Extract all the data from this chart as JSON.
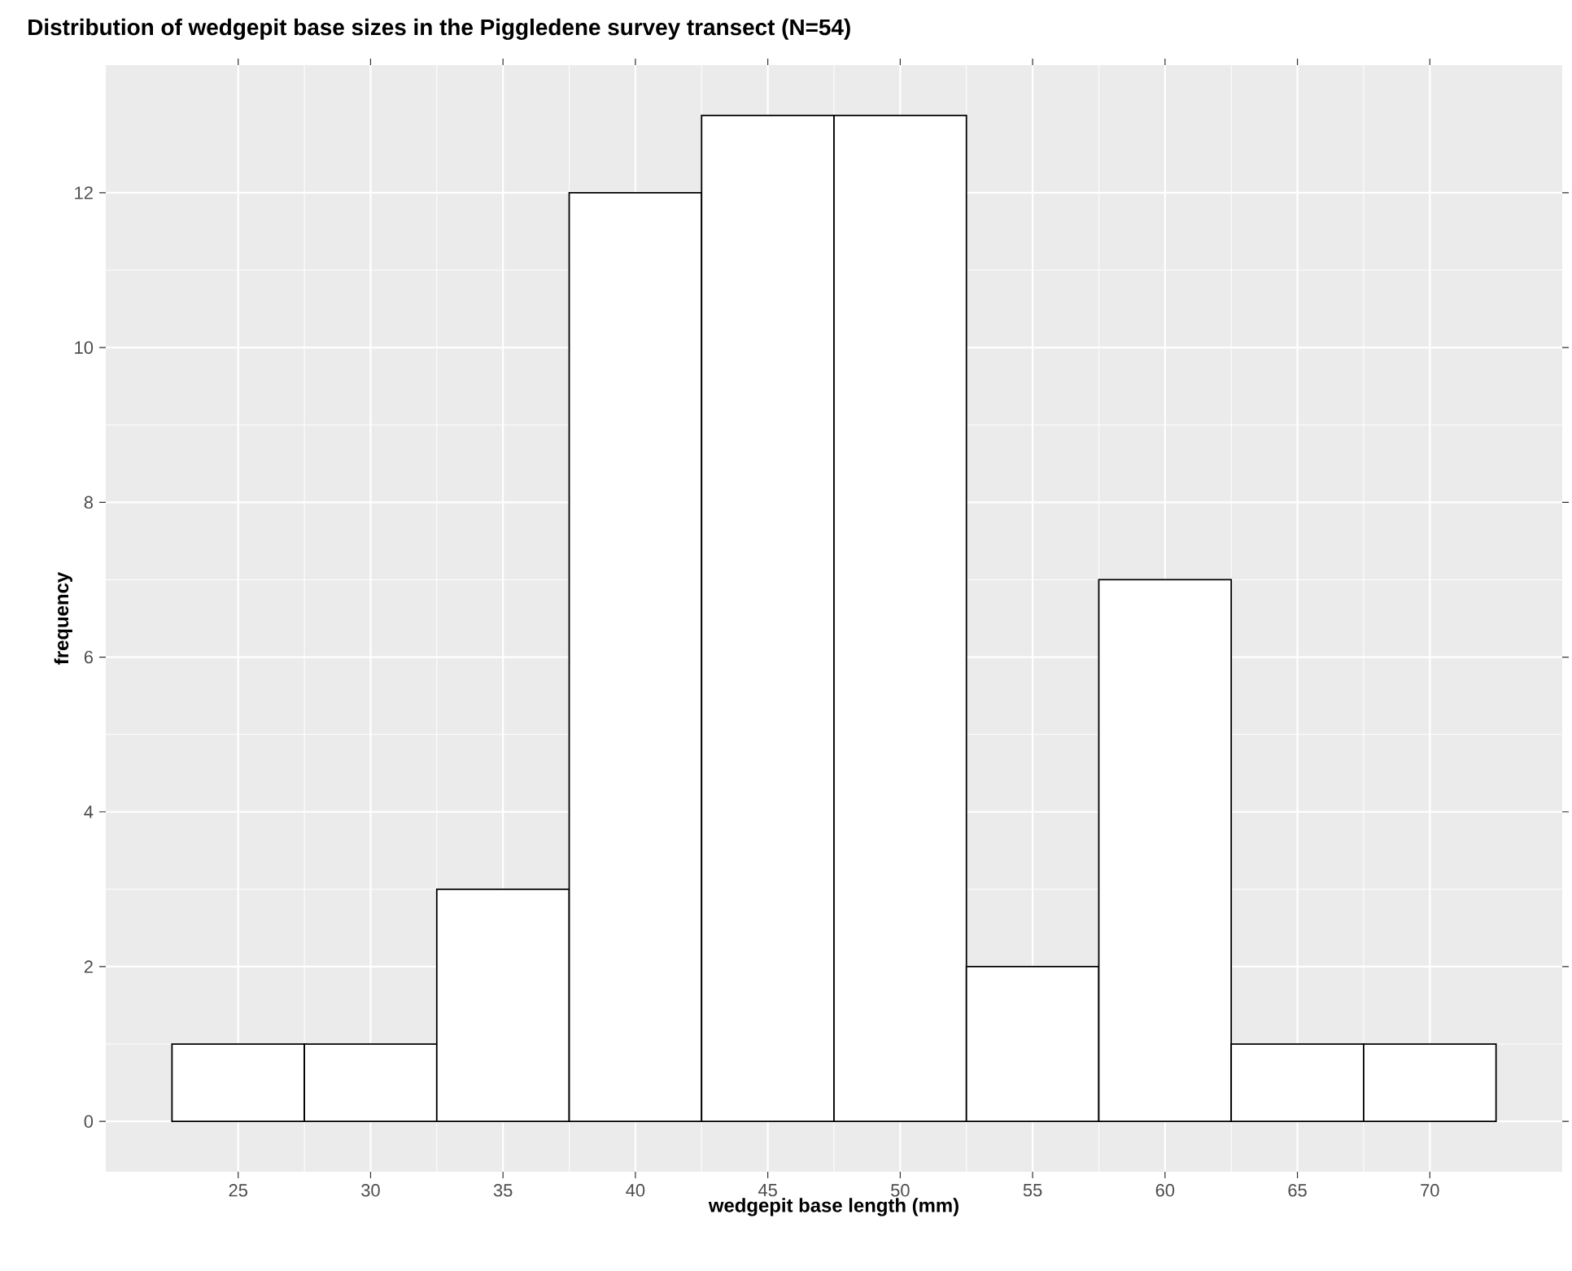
{
  "chart_data": {
    "type": "histogram",
    "title": "Distribution of wedgepit base sizes in the Piggledene survey transect (N=54)",
    "xlabel": "wedgepit base length (mm)",
    "ylabel": "frequency",
    "bins": [
      22.5,
      27.5,
      32.5,
      37.5,
      42.5,
      47.5,
      52.5,
      57.5,
      62.5,
      67.5,
      72.5
    ],
    "values": [
      1,
      1,
      3,
      12,
      13,
      13,
      2,
      7,
      1,
      1
    ],
    "color": "#ffffff",
    "xlim": [
      20,
      75
    ],
    "ylim": [
      -0.65,
      13.65
    ],
    "xticks": [
      25,
      30,
      35,
      40,
      45,
      50,
      55,
      60,
      65,
      70
    ],
    "yticks": [
      0,
      2,
      4,
      6,
      8,
      10,
      12
    ],
    "grid": true
  }
}
